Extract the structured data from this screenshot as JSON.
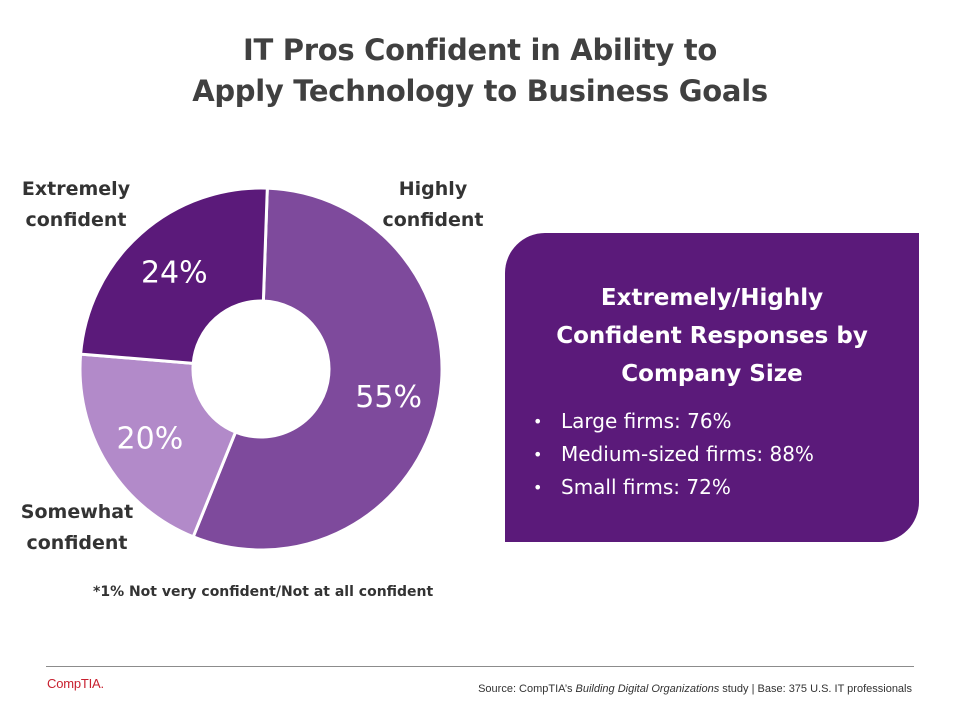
{
  "title": {
    "line1": "IT Pros Confident in Ability to",
    "line2": "Apply Technology to Business Goals"
  },
  "chart_data": {
    "type": "pie",
    "categories": [
      "Highly confident",
      "Somewhat confident",
      "Extremely confident"
    ],
    "values": [
      55,
      20,
      24
    ],
    "value_labels": [
      "55%",
      "20%",
      "24%"
    ],
    "colors": [
      "#7e4a9c",
      "#b28ac9",
      "#5b1a7a"
    ],
    "donut": true
  },
  "labels": {
    "extremely": {
      "line1": "Extremely",
      "line2": "confident"
    },
    "highly": {
      "line1": "Highly",
      "line2": "confident"
    },
    "somewhat": {
      "line1": "Somewhat",
      "line2": "confident"
    }
  },
  "footnote": "*1% Not very confident/Not at all confident",
  "panel": {
    "title_line1": "Extremely/Highly",
    "title_line2": "Confident Responses by",
    "title_line3": "Company Size",
    "items": [
      "Large firms: 76%",
      "Medium-sized firms: 88%",
      "Small firms: 72%"
    ]
  },
  "footer": {
    "logo": "CompTIA.",
    "source_prefix": "Source: CompTIA’s ",
    "source_study": "Building Digital Organizations",
    "source_suffix": " study | Base: 375 U.S. IT professionals"
  }
}
